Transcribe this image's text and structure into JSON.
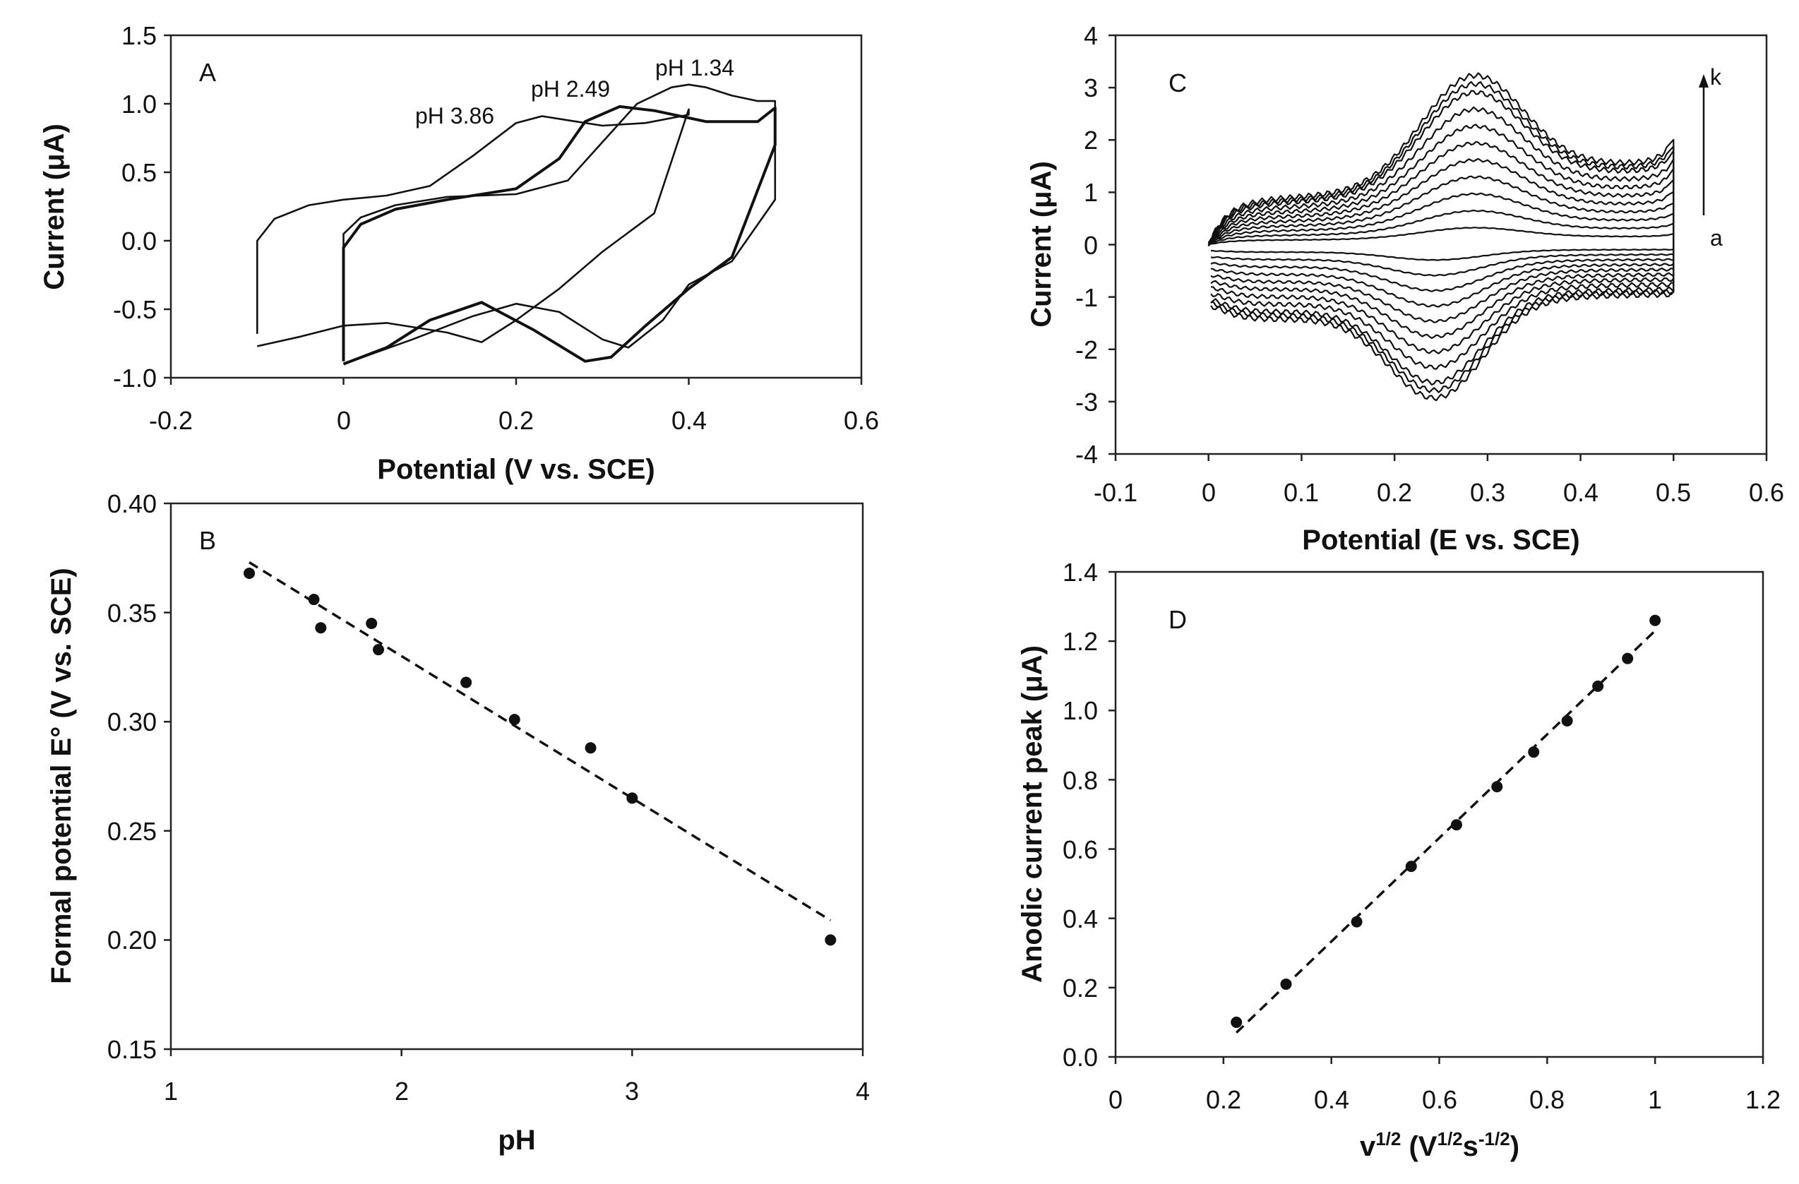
{
  "chart_data": [
    {
      "panel": "A",
      "type": "line",
      "xlabel": "Potential (V vs. SCE)",
      "ylabel": "Current (μA)",
      "xlim": [
        -0.2,
        0.6
      ],
      "ylim": [
        -1.0,
        1.5
      ],
      "xticks": [
        "-0.2",
        "0",
        "0.2",
        "0.4",
        "0.6"
      ],
      "yticks": [
        "-1.0",
        "-0.5",
        "0.0",
        "0.5",
        "1.0",
        "1.5"
      ],
      "annotations": [
        "pH 3.86",
        "pH 2.49",
        "pH 1.34"
      ],
      "series": [
        {
          "name": "pH 3.86",
          "x": [
            -0.1,
            -0.1,
            -0.08,
            -0.04,
            0.0,
            0.05,
            0.1,
            0.15,
            0.2,
            0.23,
            0.26,
            0.3,
            0.35,
            0.4,
            0.4,
            0.36,
            0.3,
            0.25,
            0.2,
            0.16,
            0.12,
            0.05,
            0.0,
            -0.05,
            -0.1
          ],
          "y": [
            -0.68,
            0.0,
            0.16,
            0.26,
            0.3,
            0.33,
            0.4,
            0.62,
            0.86,
            0.91,
            0.88,
            0.84,
            0.86,
            0.92,
            0.96,
            0.2,
            -0.08,
            -0.35,
            -0.58,
            -0.74,
            -0.67,
            -0.6,
            -0.62,
            -0.7,
            -0.77
          ]
        },
        {
          "name": "pH 2.49",
          "x": [
            0.0,
            0.0,
            0.02,
            0.06,
            0.12,
            0.2,
            0.25,
            0.28,
            0.32,
            0.36,
            0.42,
            0.48,
            0.5,
            0.5,
            0.45,
            0.4,
            0.35,
            0.31,
            0.28,
            0.22,
            0.16,
            0.1,
            0.05,
            0.0
          ],
          "y": [
            -0.88,
            -0.05,
            0.12,
            0.23,
            0.3,
            0.38,
            0.6,
            0.87,
            0.98,
            0.95,
            0.87,
            0.87,
            0.97,
            0.7,
            -0.12,
            -0.35,
            -0.62,
            -0.85,
            -0.88,
            -0.65,
            -0.45,
            -0.58,
            -0.78,
            -0.9
          ]
        },
        {
          "name": "pH 1.34",
          "x": [
            0.0,
            0.0,
            0.02,
            0.06,
            0.12,
            0.2,
            0.26,
            0.3,
            0.34,
            0.38,
            0.4,
            0.42,
            0.45,
            0.48,
            0.5,
            0.5,
            0.45,
            0.4,
            0.37,
            0.33,
            0.3,
            0.25,
            0.2,
            0.15,
            0.08,
            0.0
          ],
          "y": [
            -0.85,
            0.05,
            0.17,
            0.26,
            0.32,
            0.34,
            0.44,
            0.72,
            1.0,
            1.12,
            1.14,
            1.12,
            1.06,
            1.02,
            1.02,
            0.3,
            -0.15,
            -0.32,
            -0.58,
            -0.78,
            -0.72,
            -0.52,
            -0.46,
            -0.55,
            -0.72,
            -0.9
          ]
        }
      ]
    },
    {
      "panel": "B",
      "type": "scatter",
      "xlabel": "pH",
      "ylabel": "Formal potential E° (V vs. SCE)",
      "xlim": [
        1,
        4
      ],
      "ylim": [
        0.15,
        0.4
      ],
      "xticks": [
        "1",
        "2",
        "3",
        "4"
      ],
      "yticks": [
        "0.15",
        "0.20",
        "0.25",
        "0.30",
        "0.35",
        "0.40"
      ],
      "points": {
        "x": [
          1.34,
          1.62,
          1.65,
          1.87,
          1.9,
          2.28,
          2.49,
          2.82,
          3.0,
          3.86
        ],
        "y": [
          0.368,
          0.356,
          0.343,
          0.345,
          0.333,
          0.318,
          0.301,
          0.288,
          0.265,
          0.2
        ]
      },
      "fit": {
        "x": [
          1.34,
          3.86
        ],
        "y": [
          0.373,
          0.209
        ]
      }
    },
    {
      "panel": "C",
      "type": "line",
      "xlabel": "Potential (E vs. SCE)",
      "ylabel": "Current (μA)",
      "xlim": [
        -0.1,
        0.6
      ],
      "ylim": [
        -4,
        4
      ],
      "xticks": [
        "-0.1",
        "0",
        "0.1",
        "0.2",
        "0.3",
        "0.4",
        "0.5",
        "0.6"
      ],
      "yticks": [
        "-4",
        "-3",
        "-2",
        "-1",
        "0",
        "1",
        "2",
        "3",
        "4"
      ],
      "annotations": [
        "k",
        "a"
      ],
      "curve_scales": [
        0.1,
        0.2,
        0.3,
        0.4,
        0.5,
        0.6,
        0.7,
        0.8,
        0.9,
        0.95,
        1.0
      ]
    },
    {
      "panel": "D",
      "type": "scatter",
      "xlabel": "v",
      "xlabel_sup": "1/2",
      "xlabel_unit": " (V",
      "xlabel_unit_sup": "1/2",
      "xlabel_unit_s": "s",
      "xlabel_unit_s_sup": "-1/2",
      "xlabel_close": ")",
      "ylabel": "Anodic current peak (μA)",
      "xlim": [
        0,
        1.2
      ],
      "ylim": [
        0,
        1.4
      ],
      "xticks": [
        "0",
        "0.2",
        "0.4",
        "0.6",
        "0.8",
        "1",
        "1.2"
      ],
      "yticks": [
        "0.0",
        "0.2",
        "0.4",
        "0.6",
        "0.8",
        "1.0",
        "1.2",
        "1.4"
      ],
      "points": {
        "x": [
          0.224,
          0.316,
          0.447,
          0.548,
          0.632,
          0.707,
          0.775,
          0.837,
          0.894,
          0.949,
          1.0
        ],
        "y": [
          0.1,
          0.21,
          0.39,
          0.55,
          0.67,
          0.78,
          0.88,
          0.97,
          1.07,
          1.15,
          1.26
        ]
      },
      "fit": {
        "x": [
          0.224,
          1.0
        ],
        "y": [
          0.07,
          1.23
        ]
      }
    }
  ]
}
